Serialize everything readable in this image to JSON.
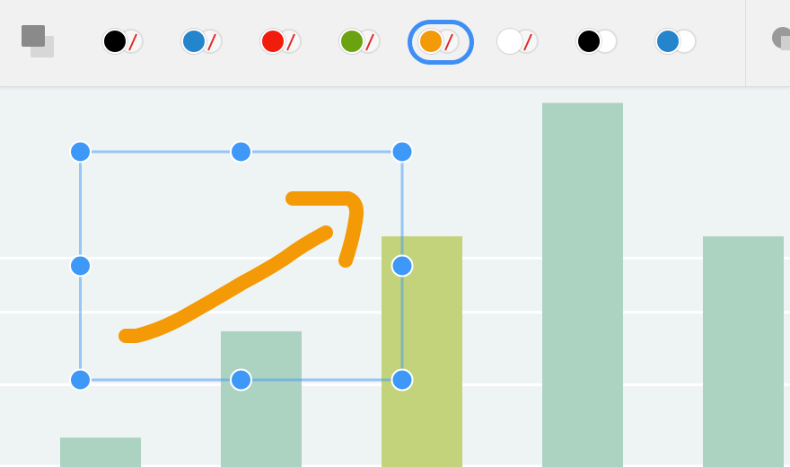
{
  "toolbar": {
    "selected_index": 4,
    "swatches": [
      {
        "fill": "#000000",
        "stroke": "none"
      },
      {
        "fill": "#2585cc",
        "stroke": "none"
      },
      {
        "fill": "#f21c0c",
        "stroke": "none"
      },
      {
        "fill": "#6aa30f",
        "stroke": "none"
      },
      {
        "fill": "#f29a08",
        "stroke": "none"
      },
      {
        "fill": "#ffffff",
        "stroke": "none"
      },
      {
        "fill": "#000000",
        "stroke": "#ffffff"
      },
      {
        "fill": "#2585cc",
        "stroke": "#ffffff"
      }
    ]
  },
  "colors": {
    "bar": "#acd3c2",
    "bar_highlight": "#c2d37b",
    "gridline": "#ffffff",
    "selection": "#3d98f7",
    "arrow": "#f49a06"
  },
  "chart_data": {
    "type": "bar",
    "grid": true,
    "values": [
      0.65,
      3,
      5.1,
      8.05,
      5.1
    ],
    "highlight_index": 2,
    "ylim": [
      0,
      8.4
    ]
  },
  "annotation": {
    "type": "freehand-arrow",
    "selected": true
  }
}
